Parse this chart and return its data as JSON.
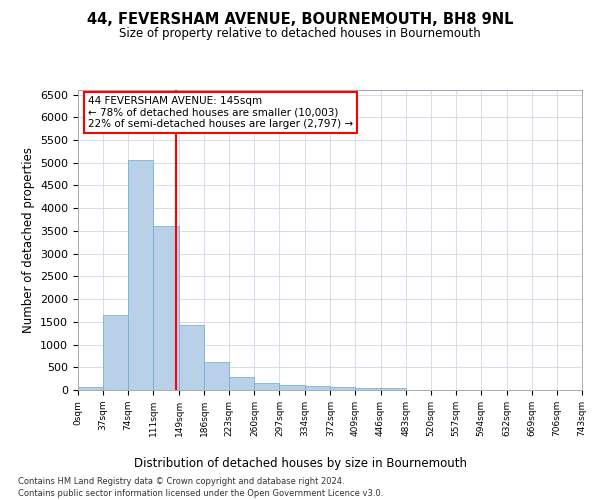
{
  "title1": "44, FEVERSHAM AVENUE, BOURNEMOUTH, BH8 9NL",
  "title2": "Size of property relative to detached houses in Bournemouth",
  "xlabel": "Distribution of detached houses by size in Bournemouth",
  "ylabel": "Number of detached properties",
  "footer1": "Contains HM Land Registry data © Crown copyright and database right 2024.",
  "footer2": "Contains public sector information licensed under the Open Government Licence v3.0.",
  "annotation_line1": "44 FEVERSHAM AVENUE: 145sqm",
  "annotation_line2": "← 78% of detached houses are smaller (10,003)",
  "annotation_line3": "22% of semi-detached houses are larger (2,797) →",
  "property_size": 145,
  "bar_color": "#b8d0e8",
  "bar_edge_color": "#6aaad4",
  "vline_color": "red",
  "grid_color": "#d0d8e8",
  "bin_edges": [
    0,
    37,
    74,
    111,
    149,
    186,
    223,
    260,
    297,
    334,
    372,
    409,
    446,
    483,
    520,
    557,
    594,
    632,
    669,
    706,
    743
  ],
  "bar_heights": [
    75,
    1650,
    5060,
    3600,
    1420,
    620,
    290,
    145,
    105,
    80,
    60,
    55,
    40,
    0,
    0,
    0,
    0,
    0,
    0,
    0
  ],
  "ylim": [
    0,
    6600
  ],
  "yticks": [
    0,
    500,
    1000,
    1500,
    2000,
    2500,
    3000,
    3500,
    4000,
    4500,
    5000,
    5500,
    6000,
    6500
  ],
  "tick_labels": [
    "0sqm",
    "37sqm",
    "74sqm",
    "111sqm",
    "149sqm",
    "186sqm",
    "223sqm",
    "260sqm",
    "297sqm",
    "334sqm",
    "372sqm",
    "409sqm",
    "446sqm",
    "483sqm",
    "520sqm",
    "557sqm",
    "594sqm",
    "632sqm",
    "669sqm",
    "706sqm",
    "743sqm"
  ]
}
